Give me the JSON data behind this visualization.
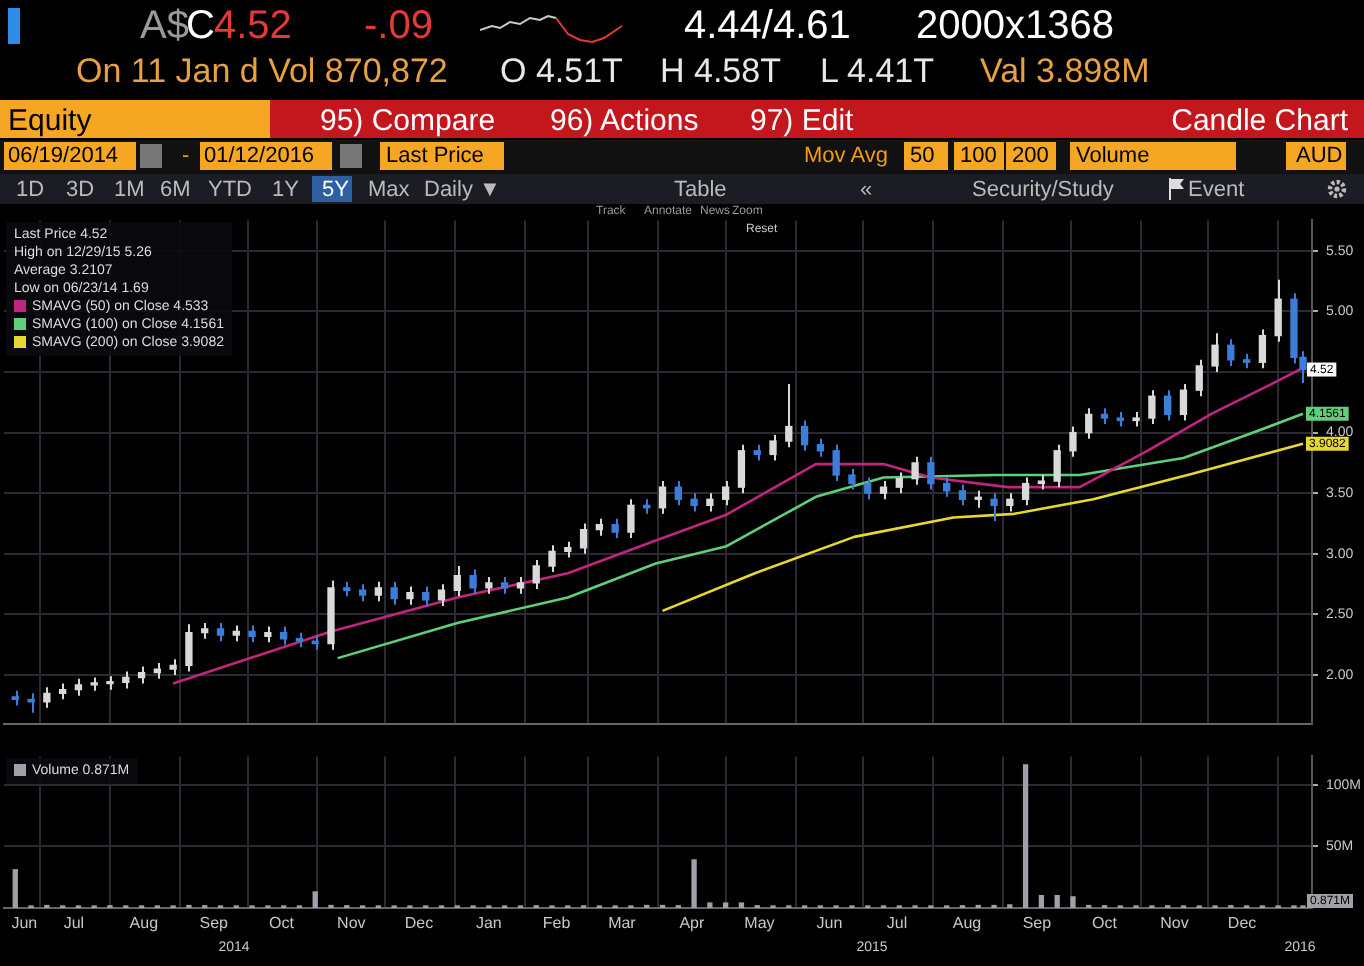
{
  "chart_data": [
    {
      "type": "candlestick",
      "annotations": [
        "A$",
        "C",
        "4.52",
        "-.09",
        "4.44/4.61",
        "2000x1368",
        "On 11 Jan d Vol 870,872",
        "O 4.51T",
        "H 4.58T",
        "L 4.41T",
        "Val 3.898M",
        "Equity",
        "95) Compare",
        "96) Actions",
        "97) Edit",
        "Candle Chart",
        "06/19/2014",
        "-",
        "01/12/2016",
        "Last Price",
        "Mov Avg",
        "50",
        "100",
        "200",
        "Volume",
        "AUD",
        "1D",
        "3D",
        "1M",
        "6M",
        "YTD",
        "1Y",
        "5Y",
        "Max",
        "Daily ▼",
        "Table",
        "«",
        "Security/Study",
        "Event",
        "Track",
        "Annotate",
        "News",
        "Zoom",
        "Reset",
        "Last Price 4.52",
        "High on 12/29/15 5.26",
        "Average 3.2107",
        "Low on 06/23/14 1.69",
        {
          "text": "4.52",
          "x": "2016-01-12",
          "y": 4.52
        }
      ],
      "x": [
        "2014-06-20",
        "2014-06-27",
        "2014-07-04",
        "2014-07-11",
        "2014-07-18",
        "2014-07-25",
        "2014-08-01",
        "2014-08-08",
        "2014-08-15",
        "2014-08-22",
        "2014-08-29",
        "2014-09-05",
        "2014-09-12",
        "2014-09-19",
        "2014-09-26",
        "2014-10-03",
        "2014-10-10",
        "2014-10-17",
        "2014-10-24",
        "2014-10-31",
        "2014-11-07",
        "2014-11-14",
        "2014-11-21",
        "2014-11-28",
        "2014-12-05",
        "2014-12-12",
        "2014-12-19",
        "2014-12-26",
        "2015-01-02",
        "2015-01-09",
        "2015-01-16",
        "2015-01-23",
        "2015-01-30",
        "2015-02-06",
        "2015-02-13",
        "2015-02-20",
        "2015-02-27",
        "2015-03-06",
        "2015-03-13",
        "2015-03-20",
        "2015-03-27",
        "2015-04-03",
        "2015-04-10",
        "2015-04-17",
        "2015-04-24",
        "2015-05-01",
        "2015-05-08",
        "2015-05-15",
        "2015-05-22",
        "2015-05-29",
        "2015-06-05",
        "2015-06-12",
        "2015-06-19",
        "2015-06-26",
        "2015-07-03",
        "2015-07-10",
        "2015-07-17",
        "2015-07-24",
        "2015-07-31",
        "2015-08-07",
        "2015-08-14",
        "2015-08-21",
        "2015-08-28",
        "2015-09-04",
        "2015-09-11",
        "2015-09-18",
        "2015-09-25",
        "2015-10-02",
        "2015-10-09",
        "2015-10-16",
        "2015-10-23",
        "2015-10-30",
        "2015-11-06",
        "2015-11-13",
        "2015-11-20",
        "2015-11-27",
        "2015-12-04",
        "2015-12-11",
        "2015-12-18",
        "2015-12-25",
        "2016-01-01",
        "2016-01-08",
        "2016-01-12"
      ],
      "ohlc": [
        [
          1.82,
          1.87,
          1.75,
          1.8
        ],
        [
          1.8,
          1.85,
          1.69,
          1.78
        ],
        [
          1.78,
          1.9,
          1.73,
          1.85
        ],
        [
          1.85,
          1.93,
          1.8,
          1.88
        ],
        [
          1.88,
          1.97,
          1.83,
          1.92
        ],
        [
          1.92,
          1.98,
          1.87,
          1.93
        ],
        [
          1.93,
          1.99,
          1.88,
          1.94
        ],
        [
          1.94,
          2.03,
          1.89,
          1.98
        ],
        [
          1.98,
          2.07,
          1.93,
          2.02
        ],
        [
          2.02,
          2.1,
          1.97,
          2.05
        ],
        [
          2.05,
          2.13,
          2.0,
          2.08
        ],
        [
          2.08,
          2.42,
          2.03,
          2.35
        ],
        [
          2.35,
          2.43,
          2.3,
          2.38
        ],
        [
          2.38,
          2.43,
          2.28,
          2.33
        ],
        [
          2.33,
          2.41,
          2.28,
          2.36
        ],
        [
          2.36,
          2.41,
          2.27,
          2.32
        ],
        [
          2.32,
          2.4,
          2.27,
          2.35
        ],
        [
          2.35,
          2.4,
          2.25,
          2.3
        ],
        [
          2.3,
          2.35,
          2.23,
          2.28
        ],
        [
          2.28,
          2.33,
          2.21,
          2.26
        ],
        [
          2.26,
          2.78,
          2.21,
          2.72
        ],
        [
          2.72,
          2.77,
          2.65,
          2.7
        ],
        [
          2.7,
          2.75,
          2.61,
          2.66
        ],
        [
          2.66,
          2.77,
          2.61,
          2.72
        ],
        [
          2.72,
          2.77,
          2.58,
          2.63
        ],
        [
          2.63,
          2.73,
          2.58,
          2.68
        ],
        [
          2.68,
          2.73,
          2.57,
          2.62
        ],
        [
          2.62,
          2.75,
          2.57,
          2.7
        ],
        [
          2.7,
          2.9,
          2.65,
          2.82
        ],
        [
          2.82,
          2.87,
          2.67,
          2.72
        ],
        [
          2.72,
          2.81,
          2.67,
          2.76
        ],
        [
          2.76,
          2.81,
          2.67,
          2.72
        ],
        [
          2.72,
          2.81,
          2.67,
          2.76
        ],
        [
          2.76,
          2.95,
          2.71,
          2.9
        ],
        [
          2.9,
          3.07,
          2.85,
          3.02
        ],
        [
          3.02,
          3.1,
          2.97,
          3.05
        ],
        [
          3.05,
          3.25,
          3.0,
          3.2
        ],
        [
          3.2,
          3.29,
          3.15,
          3.24
        ],
        [
          3.24,
          3.29,
          3.13,
          3.18
        ],
        [
          3.18,
          3.45,
          3.13,
          3.4
        ],
        [
          3.4,
          3.45,
          3.33,
          3.38
        ],
        [
          3.38,
          3.6,
          3.33,
          3.55
        ],
        [
          3.55,
          3.6,
          3.4,
          3.45
        ],
        [
          3.45,
          3.5,
          3.35,
          3.4
        ],
        [
          3.4,
          3.5,
          3.35,
          3.45
        ],
        [
          3.45,
          3.6,
          3.4,
          3.55
        ],
        [
          3.55,
          3.9,
          3.5,
          3.85
        ],
        [
          3.85,
          3.9,
          3.77,
          3.82
        ],
        [
          3.82,
          3.98,
          3.77,
          3.93
        ],
        [
          3.93,
          4.4,
          3.88,
          4.05
        ],
        [
          4.05,
          4.1,
          3.85,
          3.9
        ],
        [
          3.9,
          3.95,
          3.8,
          3.85
        ],
        [
          3.85,
          3.9,
          3.6,
          3.65
        ],
        [
          3.65,
          3.7,
          3.53,
          3.58
        ],
        [
          3.58,
          3.63,
          3.45,
          3.5
        ],
        [
          3.5,
          3.6,
          3.45,
          3.55
        ],
        [
          3.55,
          3.67,
          3.5,
          3.62
        ],
        [
          3.62,
          3.8,
          3.57,
          3.75
        ],
        [
          3.75,
          3.8,
          3.53,
          3.58
        ],
        [
          3.58,
          3.63,
          3.47,
          3.52
        ],
        [
          3.52,
          3.57,
          3.4,
          3.45
        ],
        [
          3.45,
          3.52,
          3.38,
          3.45
        ],
        [
          3.45,
          3.5,
          3.27,
          3.4
        ],
        [
          3.4,
          3.5,
          3.35,
          3.45
        ],
        [
          3.45,
          3.63,
          3.4,
          3.58
        ],
        [
          3.58,
          3.65,
          3.53,
          3.6
        ],
        [
          3.6,
          3.9,
          3.55,
          3.85
        ],
        [
          3.85,
          4.05,
          3.8,
          4.0
        ],
        [
          4.0,
          4.2,
          3.95,
          4.15
        ],
        [
          4.15,
          4.2,
          4.07,
          4.12
        ],
        [
          4.12,
          4.17,
          4.05,
          4.1
        ],
        [
          4.1,
          4.17,
          4.05,
          4.12
        ],
        [
          4.12,
          4.35,
          4.07,
          4.3
        ],
        [
          4.3,
          4.35,
          4.1,
          4.15
        ],
        [
          4.15,
          4.4,
          4.1,
          4.35
        ],
        [
          4.35,
          4.6,
          4.3,
          4.55
        ],
        [
          4.55,
          4.82,
          4.5,
          4.72
        ],
        [
          4.72,
          4.77,
          4.55,
          4.6
        ],
        [
          4.6,
          4.65,
          4.53,
          4.58
        ],
        [
          4.58,
          4.85,
          4.53,
          4.8
        ],
        [
          4.8,
          5.26,
          4.75,
          5.1
        ],
        [
          5.1,
          5.15,
          4.57,
          4.62
        ],
        [
          4.62,
          4.67,
          4.41,
          4.52
        ]
      ],
      "colors": [
        "#3b7dd8",
        "#3b7dd8",
        "#d9d9d9",
        "#d9d9d9",
        "#d9d9d9",
        "#d9d9d9",
        "#d9d9d9",
        "#d9d9d9",
        "#d9d9d9",
        "#d9d9d9",
        "#d9d9d9",
        "#d9d9d9",
        "#d9d9d9",
        "#3b7dd8",
        "#d9d9d9",
        "#3b7dd8",
        "#d9d9d9",
        "#3b7dd8",
        "#3b7dd8",
        "#3b7dd8",
        "#d9d9d9",
        "#3b7dd8",
        "#3b7dd8",
        "#d9d9d9",
        "#3b7dd8",
        "#d9d9d9",
        "#3b7dd8",
        "#d9d9d9",
        "#d9d9d9",
        "#3b7dd8",
        "#d9d9d9",
        "#3b7dd8",
        "#d9d9d9",
        "#d9d9d9",
        "#d9d9d9",
        "#d9d9d9",
        "#d9d9d9",
        "#d9d9d9",
        "#3b7dd8",
        "#d9d9d9",
        "#3b7dd8",
        "#d9d9d9",
        "#3b7dd8",
        "#3b7dd8",
        "#d9d9d9",
        "#d9d9d9",
        "#d9d9d9",
        "#3b7dd8",
        "#d9d9d9",
        "#d9d9d9",
        "#3b7dd8",
        "#3b7dd8",
        "#3b7dd8",
        "#3b7dd8",
        "#3b7dd8",
        "#d9d9d9",
        "#d9d9d9",
        "#d9d9d9",
        "#3b7dd8",
        "#3b7dd8",
        "#3b7dd8",
        "#d9d9d9",
        "#3b7dd8",
        "#d9d9d9",
        "#d9d9d9",
        "#d9d9d9",
        "#d9d9d9",
        "#d9d9d9",
        "#d9d9d9",
        "#3b7dd8",
        "#3b7dd8",
        "#d9d9d9",
        "#d9d9d9",
        "#3b7dd8",
        "#d9d9d9",
        "#d9d9d9",
        "#d9d9d9",
        "#3b7dd8",
        "#3b7dd8",
        "#d9d9d9",
        "#d9d9d9",
        "#3b7dd8",
        "#3b7dd8"
      ],
      "series": [
        {
          "name": "SMAVG (50) on Close 4.533",
          "type": "line",
          "color": "#c2257e",
          "x": [
            "2014-08-29",
            "2014-11-07",
            "2015-01-02",
            "2015-02-20",
            "2015-03-31",
            "2015-05-01",
            "2015-06-10",
            "2015-07-10",
            "2015-07-31",
            "2015-09-03",
            "2015-10-05",
            "2015-11-04",
            "2015-12-03",
            "2015-12-29",
            "2016-01-12"
          ],
          "values": [
            1.93,
            2.36,
            2.64,
            2.84,
            3.11,
            3.32,
            3.74,
            3.74,
            3.63,
            3.55,
            3.55,
            3.85,
            4.16,
            4.4,
            4.533
          ]
        },
        {
          "name": "SMAVG (100) on Close 4.1561",
          "type": "line",
          "color": "#5fcf7a",
          "x": [
            "2014-11-10",
            "2015-01-02",
            "2015-02-20",
            "2015-03-31",
            "2015-05-01",
            "2015-06-10",
            "2015-07-10",
            "2015-08-28",
            "2015-10-05",
            "2015-11-20",
            "2015-12-21",
            "2016-01-12"
          ],
          "values": [
            2.14,
            2.43,
            2.64,
            2.92,
            3.06,
            3.47,
            3.63,
            3.65,
            3.65,
            3.79,
            4.0,
            4.1561
          ],
          "value_labels": [
            null,
            null,
            null,
            null,
            null,
            null,
            null,
            null,
            null,
            null,
            null,
            "4.1561"
          ]
        },
        {
          "name": "SMAVG (200) on Close 3.9082",
          "type": "line",
          "color": "#e6d832",
          "x": [
            "2015-04-03",
            "2015-05-14",
            "2015-06-27",
            "2015-08-10",
            "2015-09-06",
            "2015-10-11",
            "2015-11-24",
            "2016-01-12"
          ],
          "values": [
            2.53,
            2.84,
            3.14,
            3.3,
            3.33,
            3.45,
            3.66,
            3.9082
          ],
          "value_labels": [
            null,
            null,
            null,
            null,
            null,
            null,
            null,
            "3.9082"
          ]
        }
      ],
      "xlim": [
        "2014-06-15",
        "2016-01-16"
      ],
      "xticks": [
        {
          "value": "2014-07-01",
          "label": null
        },
        {
          "value": "2014-08-01",
          "label": null
        },
        {
          "value": "2014-09-01",
          "label": null
        },
        {
          "value": "2014-10-01",
          "label": null
        },
        {
          "value": "2014-11-01",
          "label": null
        },
        {
          "value": "2014-12-01",
          "label": null
        },
        {
          "value": "2015-01-01",
          "label": null
        },
        {
          "value": "2015-02-01",
          "label": null
        },
        {
          "value": "2015-03-01",
          "label": null
        },
        {
          "value": "2015-04-01",
          "label": null
        },
        {
          "value": "2015-05-01",
          "label": null
        },
        {
          "value": "2015-06-01",
          "label": null
        },
        {
          "value": "2015-07-01",
          "label": null
        },
        {
          "value": "2015-08-01",
          "label": null
        },
        {
          "value": "2015-09-01",
          "label": null
        },
        {
          "value": "2015-10-01",
          "label": null
        },
        {
          "value": "2015-11-01",
          "label": null
        },
        {
          "value": "2015-12-01",
          "label": null
        },
        {
          "value": "2016-01-01",
          "label": null
        }
      ],
      "ylim": [
        1.6,
        5.75
      ],
      "yticks": [
        {
          "value": 2,
          "label": "2.00"
        },
        {
          "value": 2.5,
          "label": "2.50"
        },
        {
          "value": 3,
          "label": "3.00"
        },
        {
          "value": 3.5,
          "label": "3.50"
        },
        {
          "value": 4,
          "label": "4.00"
        },
        {
          "value": 4.5,
          "label": null
        },
        {
          "value": 5,
          "label": "5.00"
        },
        {
          "value": 5.5,
          "label": "5.50"
        }
      ],
      "tick_labels": "y",
      "grid": true,
      "legend": "top left",
      "marker": "none",
      "line_style": "solid"
    },
    {
      "type": "bar",
      "x": [
        "2014-06-20",
        "2014-06-27",
        "2014-07-04",
        "2014-07-11",
        "2014-07-18",
        "2014-07-25",
        "2014-08-01",
        "2014-08-08",
        "2014-08-15",
        "2014-08-22",
        "2014-08-29",
        "2014-09-05",
        "2014-09-12",
        "2014-09-19",
        "2014-09-26",
        "2014-10-03",
        "2014-10-10",
        "2014-10-17",
        "2014-10-24",
        "2014-10-31",
        "2014-11-07",
        "2014-11-14",
        "2014-11-21",
        "2014-11-28",
        "2014-12-05",
        "2014-12-12",
        "2014-12-19",
        "2014-12-26",
        "2015-01-02",
        "2015-01-09",
        "2015-01-16",
        "2015-01-23",
        "2015-01-30",
        "2015-02-06",
        "2015-02-13",
        "2015-02-20",
        "2015-02-27",
        "2015-03-06",
        "2015-03-13",
        "2015-03-20",
        "2015-03-27",
        "2015-04-03",
        "2015-04-10",
        "2015-04-17",
        "2015-04-24",
        "2015-05-01",
        "2015-05-08",
        "2015-05-15",
        "2015-05-22",
        "2015-05-29",
        "2015-06-05",
        "2015-06-12",
        "2015-06-19",
        "2015-06-26",
        "2015-07-03",
        "2015-07-10",
        "2015-07-17",
        "2015-07-24",
        "2015-07-31",
        "2015-08-07",
        "2015-08-14",
        "2015-08-21",
        "2015-08-28",
        "2015-09-04",
        "2015-09-11",
        "2015-09-18",
        "2015-09-25",
        "2015-10-02",
        "2015-10-09",
        "2015-10-16",
        "2015-10-23",
        "2015-10-30",
        "2015-11-06",
        "2015-11-13",
        "2015-11-20",
        "2015-11-27",
        "2015-12-04",
        "2015-12-11",
        "2015-12-18",
        "2015-12-25",
        "2016-01-01",
        "2016-01-08",
        "2016-01-12"
      ],
      "series": [
        {
          "name": "Volume 0.871M",
          "color": "#a0a0a8",
          "values": [
            31,
            1.5,
            2,
            1.5,
            1.2,
            1.5,
            1.8,
            1.5,
            1.6,
            1.4,
            1.5,
            2,
            1.8,
            1.6,
            1.5,
            1.4,
            1.5,
            1.6,
            1.5,
            13,
            2,
            1.8,
            1.6,
            1.5,
            1.4,
            1.6,
            1.2,
            1,
            1.5,
            1.6,
            1.5,
            1.4,
            1.6,
            1.8,
            1.5,
            1.6,
            1.7,
            1.5,
            1.6,
            1.5,
            2,
            2,
            1.8,
            39,
            4,
            4,
            4,
            1.8,
            1.6,
            1.5,
            1.4,
            1.6,
            1.5,
            1.4,
            1.5,
            1.6,
            1.5,
            1.4,
            1.6,
            1.5,
            1.8,
            2,
            2,
            2.5,
            116,
            10,
            10,
            9,
            2,
            1.8,
            1.6,
            1.5,
            1.6,
            1.8,
            1.6,
            1.5,
            1.6,
            1.8,
            1.5,
            1.2,
            1.4,
            1.3,
            0.871
          ]
        }
      ],
      "annotations": [
        "2014",
        "2015",
        "2016",
        {
          "text": "0.871M",
          "x": "2016-01-12",
          "y": 0.871
        }
      ],
      "xlim": [
        "2014-06-15",
        "2016-01-16"
      ],
      "xticks": [
        {
          "value": "2014-06-24",
          "label": "Jun"
        },
        {
          "value": "2014-07-01",
          "label": null
        },
        {
          "value": "2014-07-16",
          "label": "Jul"
        },
        {
          "value": "2014-08-01",
          "label": null
        },
        {
          "value": "2014-08-16",
          "label": "Aug"
        },
        {
          "value": "2014-09-01",
          "label": null
        },
        {
          "value": "2014-09-16",
          "label": "Sep"
        },
        {
          "value": "2014-10-01",
          "label": null
        },
        {
          "value": "2014-10-16",
          "label": "Oct"
        },
        {
          "value": "2014-11-01",
          "label": null
        },
        {
          "value": "2014-11-16",
          "label": "Nov"
        },
        {
          "value": "2014-12-01",
          "label": null
        },
        {
          "value": "2014-12-16",
          "label": "Dec"
        },
        {
          "value": "2015-01-01",
          "label": null
        },
        {
          "value": "2015-01-16",
          "label": "Jan"
        },
        {
          "value": "2015-02-01",
          "label": null
        },
        {
          "value": "2015-02-15",
          "label": "Feb"
        },
        {
          "value": "2015-03-01",
          "label": null
        },
        {
          "value": "2015-03-16",
          "label": "Mar"
        },
        {
          "value": "2015-04-01",
          "label": null
        },
        {
          "value": "2015-04-16",
          "label": "Apr"
        },
        {
          "value": "2015-05-01",
          "label": null
        },
        {
          "value": "2015-05-16",
          "label": "May"
        },
        {
          "value": "2015-06-01",
          "label": null
        },
        {
          "value": "2015-06-16",
          "label": "Jun"
        },
        {
          "value": "2015-07-01",
          "label": null
        },
        {
          "value": "2015-07-16",
          "label": "Jul"
        },
        {
          "value": "2015-08-01",
          "label": null
        },
        {
          "value": "2015-08-16",
          "label": "Aug"
        },
        {
          "value": "2015-09-01",
          "label": null
        },
        {
          "value": "2015-09-16",
          "label": "Sep"
        },
        {
          "value": "2015-10-01",
          "label": null
        },
        {
          "value": "2015-10-16",
          "label": "Oct"
        },
        {
          "value": "2015-11-01",
          "label": null
        },
        {
          "value": "2015-11-16",
          "label": "Nov"
        },
        {
          "value": "2015-12-01",
          "label": null
        },
        {
          "value": "2015-12-16",
          "label": "Dec"
        },
        {
          "value": "2016-01-01",
          "label": null
        }
      ],
      "ylim": [
        0,
        123
      ],
      "yticks": [
        {
          "value": 50,
          "label": "50M"
        },
        {
          "value": 100,
          "label": "100M"
        }
      ],
      "grid": true,
      "legend": "top left"
    }
  ]
}
